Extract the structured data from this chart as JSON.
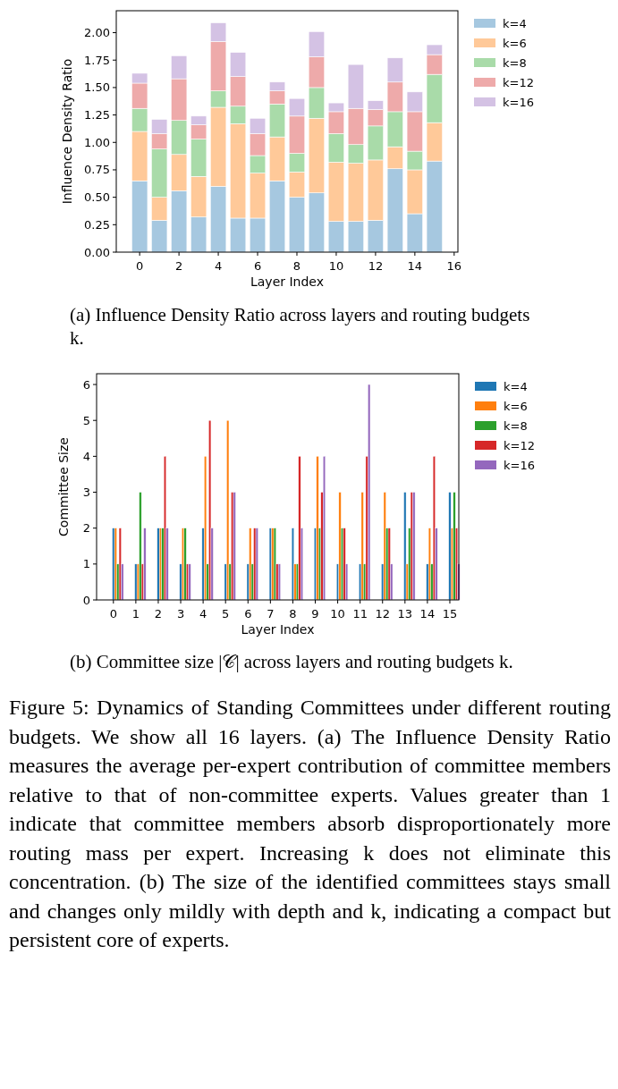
{
  "chart_data": [
    {
      "type": "bar",
      "stacked": true,
      "ylabel": "Influence Density Ratio",
      "xlabel": "Layer Index",
      "x": [
        0,
        1,
        2,
        3,
        4,
        5,
        6,
        7,
        8,
        9,
        10,
        11,
        12,
        13,
        14,
        15
      ],
      "xlim": [
        -1.19,
        16.19
      ],
      "xticks": [
        0,
        2,
        4,
        6,
        8,
        10,
        12,
        14,
        16
      ],
      "ylim": [
        0,
        2.2
      ],
      "yticks": [
        {
          "value": 0,
          "label": "0.00"
        },
        {
          "value": 0.25,
          "label": "0.25"
        },
        {
          "value": 0.5,
          "label": "0.50"
        },
        {
          "value": 0.75,
          "label": "0.75"
        },
        {
          "value": 1,
          "label": "1.00"
        },
        {
          "value": 1.25,
          "label": "1.25"
        },
        {
          "value": 1.5,
          "label": "1.50"
        },
        {
          "value": 1.75,
          "label": "1.75"
        },
        {
          "value": 2,
          "label": "2.00"
        }
      ],
      "legend": "right",
      "grid": false,
      "series": [
        {
          "name": "k=4",
          "color": "#a6c8e0",
          "values": [
            0.65,
            0.29,
            0.56,
            0.32,
            0.6,
            0.31,
            0.31,
            0.65,
            0.5,
            0.54,
            0.28,
            0.28,
            0.29,
            0.76,
            0.35,
            0.83
          ]
        },
        {
          "name": "k=6",
          "color": "#ffc999",
          "values": [
            0.45,
            0.21,
            0.33,
            0.37,
            0.72,
            0.86,
            0.41,
            0.4,
            0.23,
            0.68,
            0.54,
            0.53,
            0.55,
            0.2,
            0.4,
            0.35
          ]
        },
        {
          "name": "k=8",
          "color": "#a9dba9",
          "values": [
            0.21,
            0.44,
            0.31,
            0.34,
            0.15,
            0.16,
            0.16,
            0.3,
            0.17,
            0.28,
            0.26,
            0.17,
            0.31,
            0.32,
            0.17,
            0.44
          ]
        },
        {
          "name": "k=12",
          "color": "#eeaaaa",
          "values": [
            0.23,
            0.14,
            0.38,
            0.13,
            0.45,
            0.27,
            0.2,
            0.12,
            0.34,
            0.28,
            0.2,
            0.33,
            0.15,
            0.27,
            0.36,
            0.18
          ]
        },
        {
          "name": "k=16",
          "color": "#d4c2e4",
          "values": [
            0.09,
            0.13,
            0.21,
            0.08,
            0.17,
            0.22,
            0.14,
            0.08,
            0.16,
            0.23,
            0.08,
            0.4,
            0.08,
            0.22,
            0.18,
            0.09
          ]
        }
      ],
      "annotations": [
        "(a) Influence Density Ratio across layers and routing budgets k."
      ]
    },
    {
      "type": "bar",
      "ylabel": "Committee Size",
      "xlabel": "Layer Index",
      "categories": [
        "0",
        "1",
        "2",
        "3",
        "4",
        "5",
        "6",
        "7",
        "8",
        "9",
        "10",
        "11",
        "12",
        "13",
        "14",
        "15"
      ],
      "ylim": [
        0,
        6.3
      ],
      "yticks": [
        0,
        1,
        2,
        3,
        4,
        5,
        6
      ],
      "legend": "right",
      "grid": false,
      "series": [
        {
          "name": "k=4",
          "color": "#1f77b4",
          "values": [
            2,
            1,
            2,
            1,
            2,
            1,
            1,
            2,
            2,
            2,
            1,
            1,
            1,
            3,
            1,
            3
          ]
        },
        {
          "name": "k=6",
          "color": "#ff7f0e",
          "values": [
            2,
            1,
            2,
            2,
            4,
            5,
            2,
            2,
            1,
            4,
            3,
            3,
            3,
            1,
            2,
            2
          ]
        },
        {
          "name": "k=8",
          "color": "#2ca02c",
          "values": [
            1,
            3,
            2,
            2,
            1,
            1,
            1,
            2,
            1,
            2,
            2,
            1,
            2,
            2,
            1,
            3
          ]
        },
        {
          "name": "k=12",
          "color": "#d62728",
          "values": [
            2,
            1,
            4,
            1,
            5,
            3,
            2,
            1,
            4,
            3,
            2,
            4,
            2,
            3,
            4,
            2
          ]
        },
        {
          "name": "k=16",
          "color": "#9467bd",
          "values": [
            1,
            2,
            2,
            1,
            2,
            3,
            2,
            1,
            2,
            4,
            1,
            6,
            1,
            3,
            2,
            1
          ]
        }
      ],
      "annotations": [
        "(b) Committee size |𝒞| across layers and routing budgets k.",
        "Figure 5: Dynamics of Standing Committees under different routing budgets. We show all 16 layers. (a) The Influence Density Ratio measures the average per-expert contribution of committee members relative to that of non-committee experts. Values greater than 1 indicate that committee members absorb disproportionately more routing mass per expert. Increasing k does not eliminate this concentration. (b) The size of the identified committees stays small and changes only mildly with depth and k, indicating a compact but persistent core of experts."
      ]
    }
  ]
}
